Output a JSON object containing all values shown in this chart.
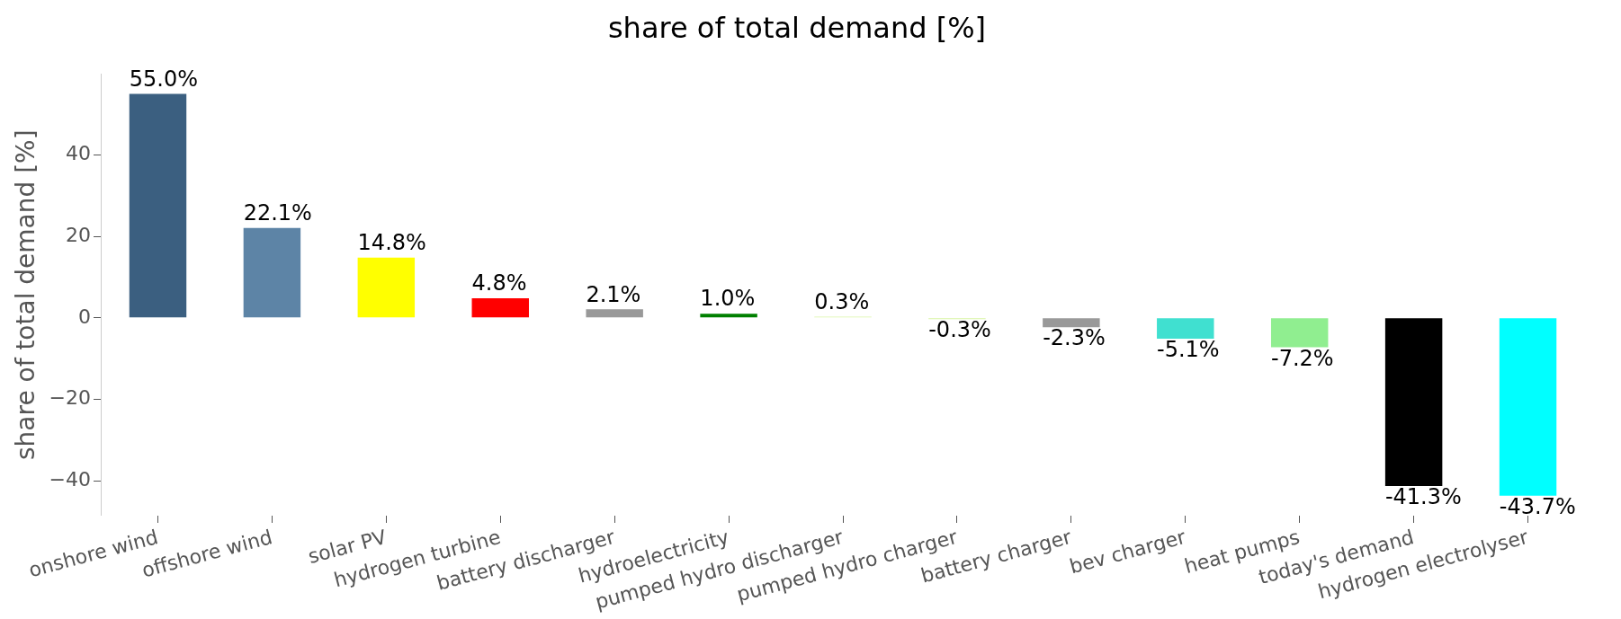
{
  "chart_data": {
    "type": "bar",
    "title": "share of total demand [%]",
    "ylabel": "share of total demand [%]",
    "categories": [
      "onshore wind",
      "offshore wind",
      "solar PV",
      "hydrogen turbine",
      "battery discharger",
      "hydroelectricity",
      "pumped hydro discharger",
      "pumped hydro charger",
      "battery charger",
      "bev charger",
      "heat pumps",
      "today's demand",
      "hydrogen electrolyser"
    ],
    "values": [
      55.0,
      22.1,
      14.8,
      4.8,
      2.1,
      1.0,
      0.3,
      -0.3,
      -2.3,
      -5.1,
      -7.2,
      -41.3,
      -43.7
    ],
    "value_labels": [
      "55.0%",
      "22.1%",
      "14.8%",
      "4.8%",
      "2.1%",
      "1.0%",
      "0.3%",
      "-0.3%",
      "-2.3%",
      "-5.1%",
      "-7.2%",
      "-41.3%",
      "-43.7%"
    ],
    "colors": [
      "#3b5f80",
      "#5d84a6",
      "#ffff00",
      "#ff0000",
      "#999999",
      "#008000",
      "#d9f5a3",
      "#d9f5a3",
      "#999999",
      "#40e0d0",
      "#90ee90",
      "#000000",
      "#00ffff"
    ],
    "ylim": [
      -48.6,
      59.9
    ],
    "yticks": [
      {
        "value": -40,
        "label": "−40"
      },
      {
        "value": -20,
        "label": "−20"
      },
      0,
      20,
      40
    ],
    "grid": false,
    "legend": false
  }
}
